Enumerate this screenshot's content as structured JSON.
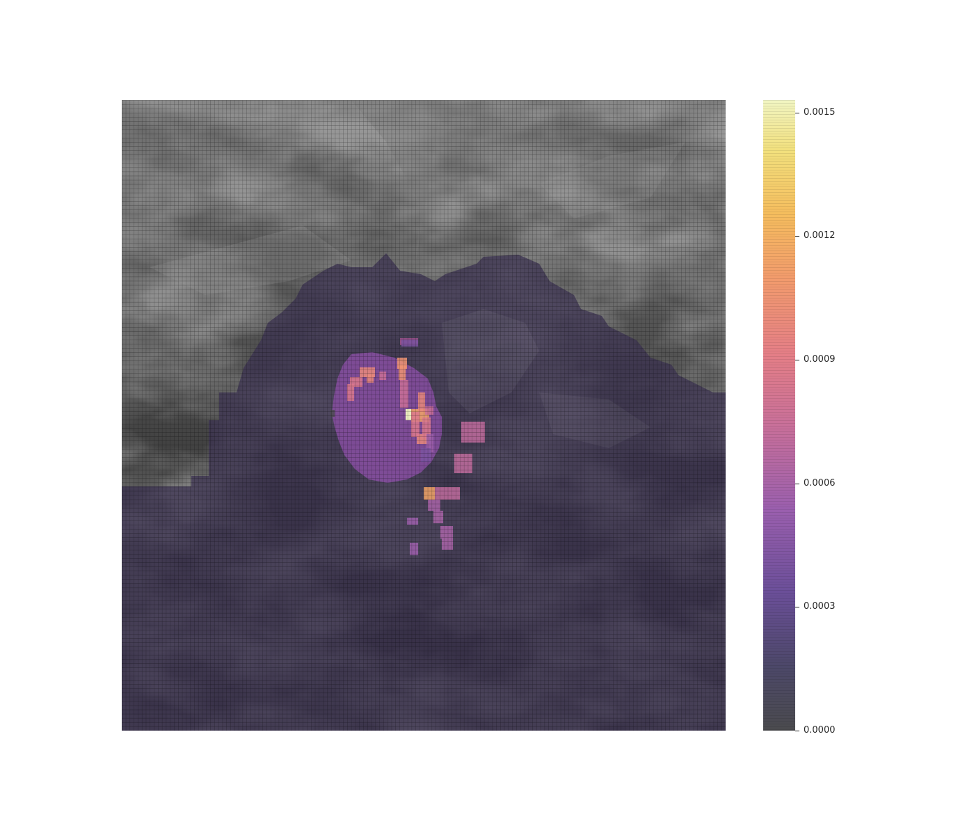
{
  "chart_data": {
    "type": "heatmap",
    "title": "",
    "xlabel": "",
    "ylabel": "",
    "grid": true,
    "grid_cells": {
      "cols": 150,
      "rows": 150
    },
    "colormap": "inferno",
    "colorbar": {
      "position": "right",
      "vmin": 0.0,
      "vmax": 0.00153,
      "ticks": [
        0.0,
        0.0003,
        0.0006,
        0.0009,
        0.0012,
        0.0015
      ],
      "tick_labels": [
        "0.0000",
        "0.0003",
        "0.0006",
        "0.0009",
        "0.0012",
        "0.0015"
      ]
    },
    "basemap": "grayscale hillshade terrain",
    "hotspots": [
      {
        "name": "",
        "value": 0.00153
      },
      {
        "name": "",
        "value": 0.00115
      },
      {
        "name": "",
        "value": 0.00105
      },
      {
        "name": "",
        "value": 0.00098
      },
      {
        "name": "",
        "value": 0.00085
      },
      {
        "name": "",
        "value": 0.00075
      },
      {
        "name": "",
        "value": 0.0007
      },
      {
        "name": "",
        "value": 0.0006
      },
      {
        "name": "",
        "value": 0.00055
      },
      {
        "name": "",
        "value": 0.0004
      },
      {
        "name": "",
        "value": 1e-05
      }
    ]
  },
  "colors": {
    "background": "#ffffff",
    "terrain_dark": "#2f2f2f",
    "terrain_light": "#8a8a8a",
    "low_overlay": "#3a3150",
    "mid_overlay": "#8d4fa8",
    "high_overlay": "#f6a452",
    "peak": "#f2f5b5"
  }
}
